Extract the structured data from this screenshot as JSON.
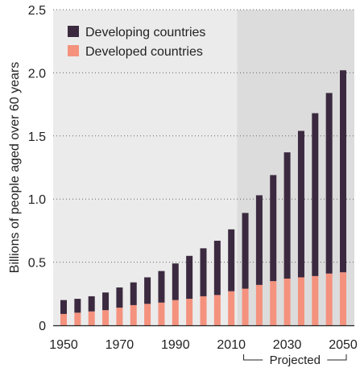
{
  "chart_data": {
    "type": "bar",
    "stacked": true,
    "ylabel": "Billions of people aged over 60 years",
    "ylim": [
      0,
      2.5
    ],
    "yticks": [
      "0",
      "0.5",
      "1.0",
      "1.5",
      "2.0",
      "2.5"
    ],
    "yticks_values": [
      0,
      0.5,
      1.0,
      1.5,
      2.0,
      2.5
    ],
    "xticks": [
      "1950",
      "1970",
      "1990",
      "2010",
      "2030",
      "2050"
    ],
    "x": [
      1950,
      1955,
      1960,
      1965,
      1970,
      1975,
      1980,
      1985,
      1990,
      1995,
      2000,
      2005,
      2010,
      2015,
      2020,
      2025,
      2030,
      2035,
      2040,
      2045,
      2050
    ],
    "series": [
      {
        "name": "Developed countries",
        "color": "#f4927e",
        "values": [
          0.09,
          0.1,
          0.11,
          0.12,
          0.14,
          0.16,
          0.17,
          0.18,
          0.2,
          0.21,
          0.23,
          0.24,
          0.27,
          0.29,
          0.32,
          0.35,
          0.37,
          0.38,
          0.39,
          0.41,
          0.42
        ]
      },
      {
        "name": "Developing countries",
        "color": "#3b2a3f",
        "values": [
          0.11,
          0.11,
          0.12,
          0.14,
          0.16,
          0.18,
          0.21,
          0.25,
          0.29,
          0.34,
          0.38,
          0.43,
          0.49,
          0.6,
          0.71,
          0.84,
          1.0,
          1.16,
          1.29,
          1.43,
          1.6
        ]
      }
    ],
    "legend": {
      "placement": "top-left",
      "items": [
        "Developing countries",
        "Developed countries"
      ]
    },
    "grid": "dotted horizontal",
    "annotation": {
      "label": "Projected",
      "from_year": 2015,
      "to_year": 2050
    },
    "colors": {
      "plot_background": "#ebebeb",
      "projected_background": "#dcdcdc",
      "developing": "#3b2a3f",
      "developed": "#f4927e"
    }
  }
}
